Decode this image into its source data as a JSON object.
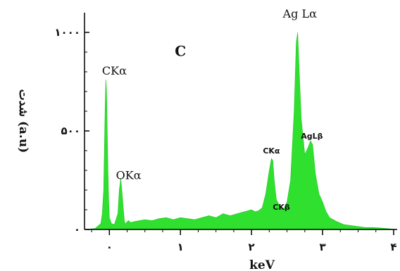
{
  "chart_data": {
    "type": "area",
    "panel_label": "C",
    "xlabel": "keV",
    "ylabel": "شدت (a.u)",
    "xlim": [
      -0.35,
      4.05
    ],
    "ylim": [
      0,
      1100
    ],
    "x_ticks": [
      0,
      1,
      2,
      3,
      4
    ],
    "x_tick_labels": [
      "۰",
      "۱",
      "۲",
      "۳",
      "۴"
    ],
    "y_ticks": [
      0,
      500,
      1000
    ],
    "y_tick_labels": [
      "۰",
      "۵۰۰",
      "۱۰۰۰"
    ],
    "grid": false,
    "fill_color": "#2fe02f",
    "annotations": [
      {
        "text": "Ag Lα",
        "x": 2.68,
        "y": 1075,
        "style": "serif"
      },
      {
        "text": "CKα",
        "x": 0.07,
        "y": 785,
        "style": "serif"
      },
      {
        "text": "OKα",
        "x": 0.27,
        "y": 255,
        "style": "serif"
      },
      {
        "text": "CKα",
        "x": 2.28,
        "y": 385,
        "style": "small"
      },
      {
        "text": "AgLβ",
        "x": 2.85,
        "y": 460,
        "style": "small"
      },
      {
        "text": "CKβ",
        "x": 2.42,
        "y": 100,
        "style": "small"
      }
    ],
    "series": [
      {
        "x": [
          -0.35,
          -0.2,
          -0.12,
          -0.1,
          -0.08,
          -0.07,
          -0.06,
          -0.05,
          -0.04,
          -0.03,
          -0.02,
          -0.01,
          0.0,
          0.03,
          0.07,
          0.12,
          0.14,
          0.16,
          0.18,
          0.2,
          0.21,
          0.22,
          0.23,
          0.25,
          0.27,
          0.3,
          0.35,
          0.5,
          0.6,
          0.7,
          0.8,
          0.9,
          1.0,
          1.1,
          1.2,
          1.3,
          1.4,
          1.5,
          1.6,
          1.7,
          1.8,
          1.9,
          2.0,
          2.05,
          2.1,
          2.15,
          2.2,
          2.25,
          2.28,
          2.3,
          2.32,
          2.35,
          2.4,
          2.45,
          2.5,
          2.55,
          2.6,
          2.63,
          2.65,
          2.67,
          2.7,
          2.75,
          2.8,
          2.83,
          2.86,
          2.9,
          2.95,
          3.0,
          3.05,
          3.1,
          3.2,
          3.3,
          3.4,
          3.5,
          3.6,
          3.7,
          3.8,
          3.9,
          4.05
        ],
        "y": [
          0,
          5,
          30,
          80,
          200,
          420,
          620,
          760,
          700,
          500,
          300,
          150,
          60,
          30,
          25,
          80,
          200,
          260,
          180,
          90,
          50,
          30,
          30,
          40,
          45,
          35,
          40,
          50,
          45,
          55,
          60,
          50,
          60,
          55,
          50,
          60,
          70,
          60,
          80,
          70,
          80,
          90,
          100,
          90,
          95,
          110,
          180,
          300,
          360,
          350,
          250,
          150,
          120,
          100,
          140,
          250,
          600,
          950,
          1000,
          820,
          560,
          380,
          420,
          450,
          430,
          280,
          180,
          140,
          90,
          60,
          40,
          25,
          20,
          15,
          10,
          10,
          8,
          5,
          0
        ]
      }
    ]
  }
}
